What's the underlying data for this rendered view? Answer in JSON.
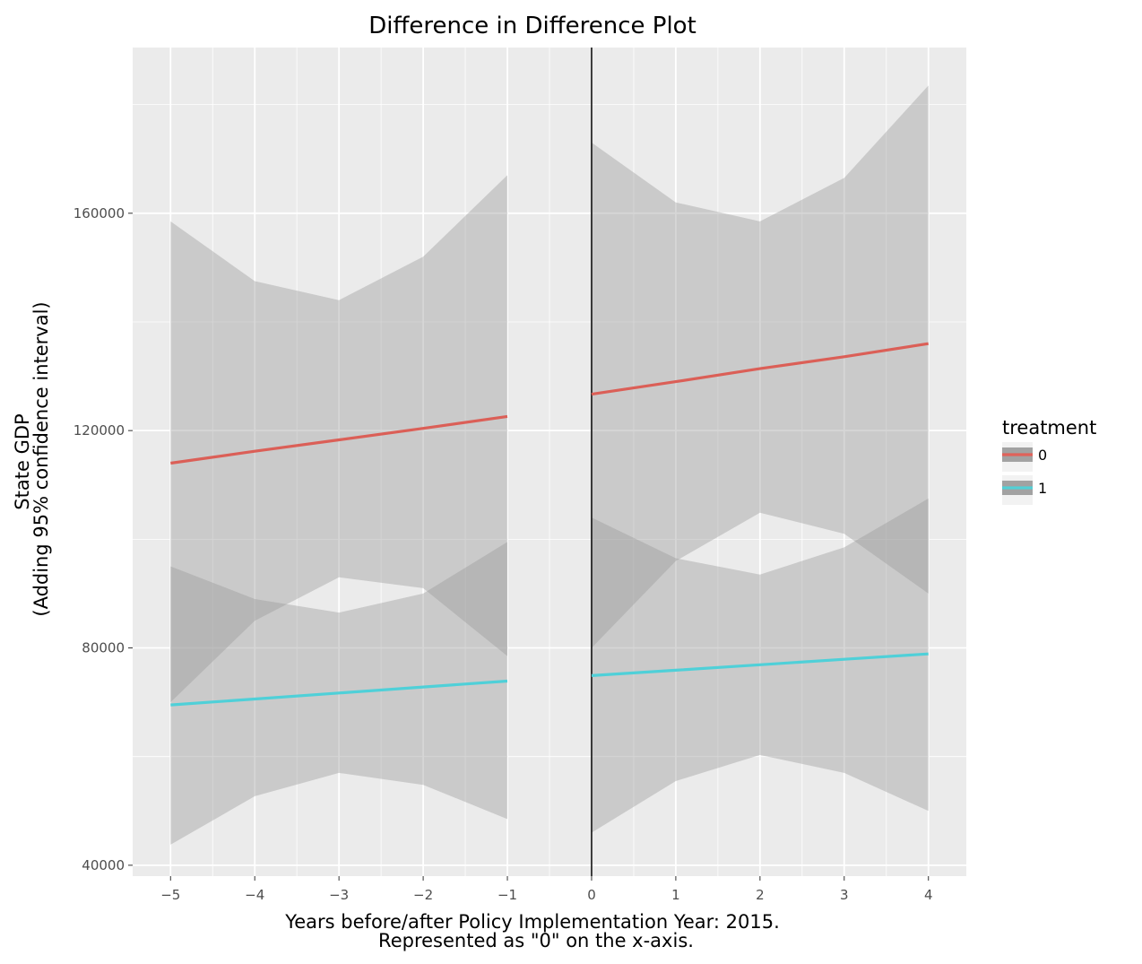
{
  "chart_data": {
    "type": "line",
    "title": "Difference in Difference Plot",
    "xlabel_line1": "Years before/after Policy Implementation Year: 2015.",
    "xlabel_line2": "Represented as \"0\" on the x-axis.",
    "ylabel_line1": "State GDP",
    "ylabel_line2": "(Adding 95% confidence interval)",
    "xlim": [
      -5.45,
      4.45
    ],
    "ylim": [
      38000,
      190500
    ],
    "x_ticks": [
      -5,
      -4,
      -3,
      -2,
      -1,
      0,
      1,
      2,
      3,
      4
    ],
    "x_tick_labels": [
      "−5",
      "−4",
      "−3",
      "−2",
      "−1",
      "0",
      "1",
      "2",
      "3",
      "4"
    ],
    "y_ticks": [
      40000,
      80000,
      120000,
      160000
    ],
    "y_tick_labels": [
      "40000",
      "80000",
      "120000",
      "160000"
    ],
    "vline_x": 0,
    "grid": true,
    "legend": {
      "title": "treatment",
      "position": "right",
      "entries": [
        {
          "label": "0",
          "color": "#e0625a"
        },
        {
          "label": "1",
          "color": "#52d0d6"
        }
      ]
    },
    "series": [
      {
        "name": "0",
        "color": "#db5f57",
        "segments": [
          {
            "x": [
              -5,
              -4,
              -3,
              -2,
              -1
            ],
            "y": [
              114000,
              116200,
              118300,
              120400,
              122600
            ],
            "ci_lower": [
              70000,
              85000,
              93000,
              91000,
              78500
            ],
            "ci_upper": [
              158500,
              147500,
              144000,
              152000,
              167000
            ]
          },
          {
            "x": [
              0,
              1,
              2,
              3,
              4
            ],
            "y": [
              126700,
              129000,
              131400,
              133600,
              136000
            ],
            "ci_lower": [
              80000,
              96000,
              104900,
              101000,
              90000
            ],
            "ci_upper": [
              173000,
              162000,
              158500,
              166500,
              183500
            ]
          }
        ]
      },
      {
        "name": "1",
        "color": "#4fd0d8",
        "segments": [
          {
            "x": [
              -5,
              -4,
              -3,
              -2,
              -1
            ],
            "y": [
              69500,
              70600,
              71700,
              72800,
              73900
            ],
            "ci_lower": [
              43800,
              52700,
              57000,
              54800,
              48500
            ],
            "ci_upper": [
              95000,
              89000,
              86500,
              90000,
              99500
            ]
          },
          {
            "x": [
              0,
              1,
              2,
              3,
              4
            ],
            "y": [
              74900,
              75900,
              76900,
              77900,
              78900
            ],
            "ci_lower": [
              46000,
              55500,
              60300,
              57000,
              50000
            ],
            "ci_upper": [
              104000,
              96500,
              93500,
              98500,
              107500
            ]
          }
        ]
      }
    ]
  }
}
